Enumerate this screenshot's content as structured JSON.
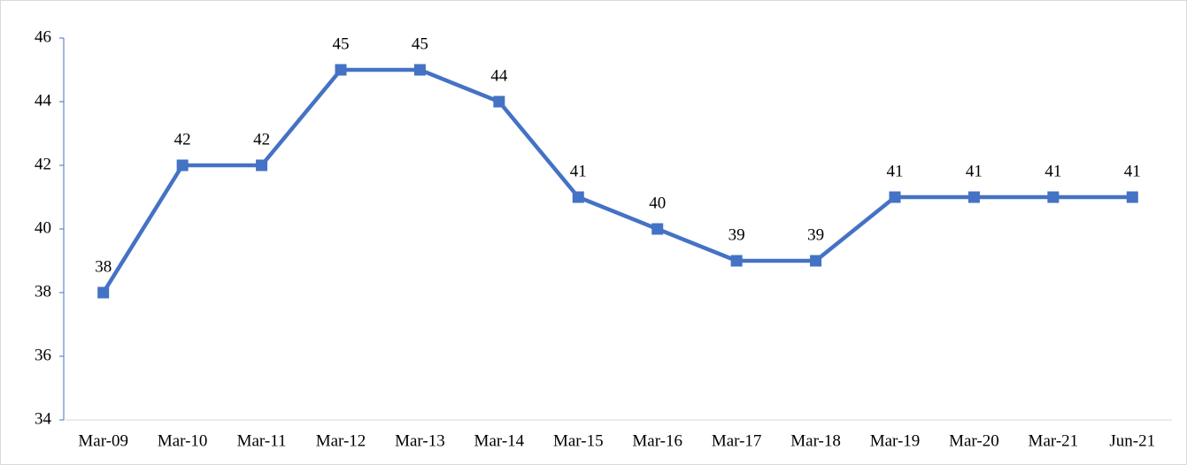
{
  "chart_data": {
    "type": "line",
    "categories": [
      "Mar-09",
      "Mar-10",
      "Mar-11",
      "Mar-12",
      "Mar-13",
      "Mar-14",
      "Mar-15",
      "Mar-16",
      "Mar-17",
      "Mar-18",
      "Mar-19",
      "Mar-20",
      "Mar-21",
      "Jun-21"
    ],
    "series": [
      {
        "color": "#4472c4",
        "values": [
          38,
          42,
          42,
          45,
          45,
          44,
          41,
          40,
          39,
          39,
          41,
          41,
          41,
          41
        ]
      }
    ],
    "ylim": [
      34,
      46
    ],
    "yticks": [
      34,
      36,
      38,
      40,
      42,
      44,
      46
    ],
    "grid": false,
    "data_labels": true
  }
}
